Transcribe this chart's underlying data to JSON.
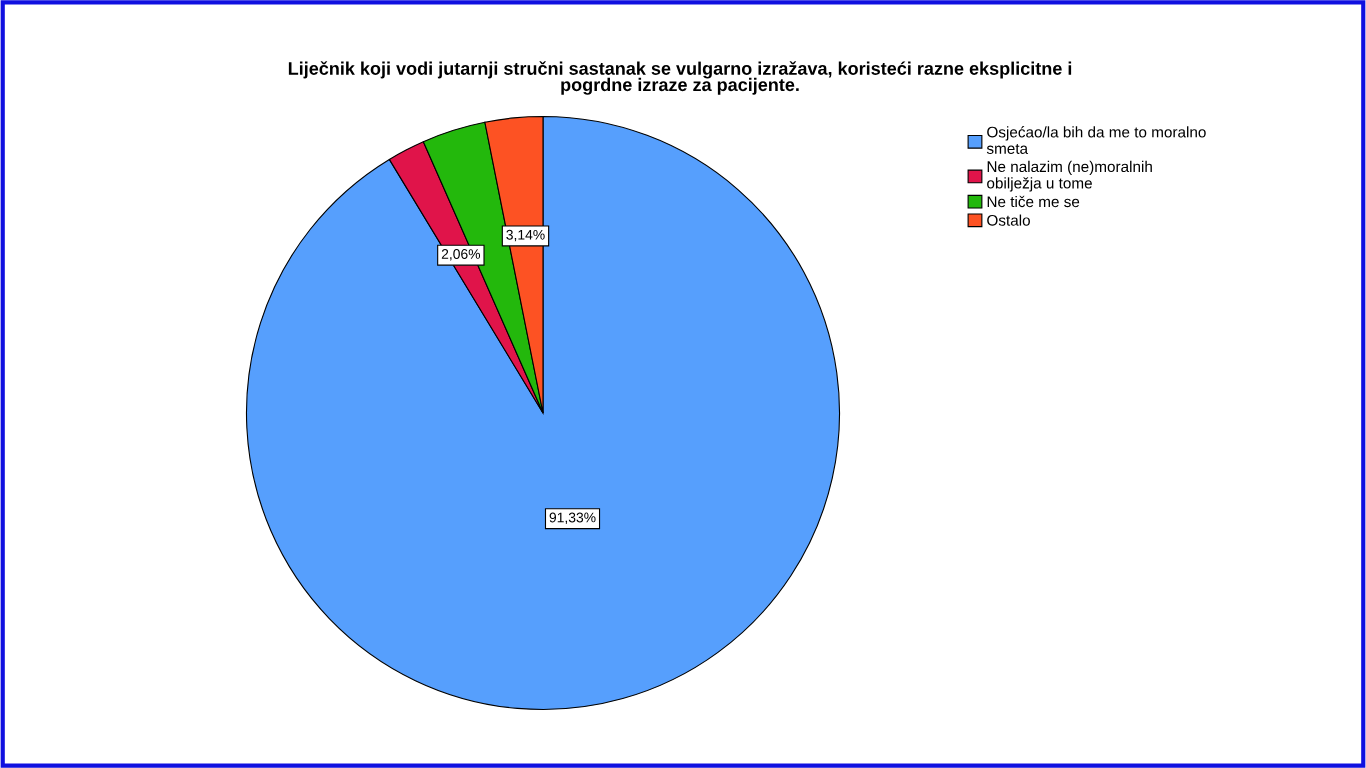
{
  "chart_data": {
    "type": "pie",
    "title": "Liječnik koji vodi jutarnji stručni sastanak se vulgarno izražava, koristeći razne eksplicitne i\npogrdne izraze za pacijente.",
    "categories": [
      "Osjećao/la bih da me to moralno\nsmeta",
      "Ne nalazim (ne)moralnih\nobilježja u tome",
      "Ne tiče me se",
      "Ostalo"
    ],
    "values": [
      91.33,
      2.06,
      3.47,
      3.14
    ],
    "colors": [
      "#569ffd",
      "#e0144a",
      "#23b80c",
      "#fd5223"
    ],
    "value_labels": [
      "91,33%",
      "2,06%",
      null,
      "3,14%"
    ],
    "legend": "right"
  }
}
